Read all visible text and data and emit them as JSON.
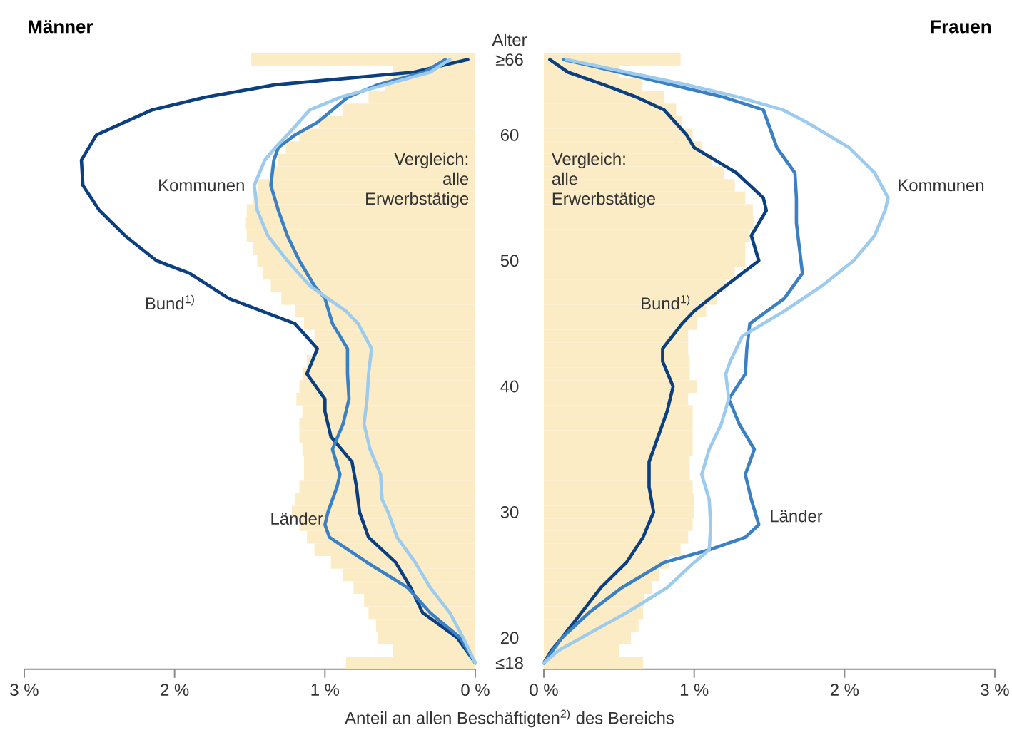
{
  "chart_data": [
    {
      "type": "line",
      "orientation": "horizontal",
      "title": "Männer",
      "ylabel": "Alter",
      "xlabel": "Anteil an allen Beschäftigten$^{2)}$ des Bereichs",
      "xlim": [
        3,
        0
      ],
      "xticks": [
        {
          "value": 3,
          "label": "3 %"
        },
        {
          "value": 2,
          "label": "2 %"
        },
        {
          "value": 1,
          "label": "1 %"
        },
        {
          "value": 0,
          "label": "0 %"
        }
      ],
      "ylim": [
        17.5,
        66.5
      ],
      "yticks": [
        {
          "value": 18,
          "label": "≤18"
        },
        20,
        30,
        40,
        50,
        60,
        {
          "value": 66,
          "label": "≥66"
        }
      ],
      "series": [
        {
          "name": "Vergleich: alle Erwerbstätige",
          "type": "bar",
          "color": "#fcecc6",
          "x": [
            18,
            19,
            20,
            21,
            22,
            23,
            24,
            25,
            26,
            27,
            28,
            29,
            30,
            31,
            32,
            33,
            34,
            35,
            36,
            37,
            38,
            39,
            40,
            41,
            42,
            43,
            44,
            45,
            46,
            47,
            48,
            49,
            50,
            51,
            52,
            53,
            54,
            55,
            56,
            57,
            58,
            59,
            60,
            61,
            62,
            63,
            64,
            65,
            66
          ],
          "values": [
            0.86,
            0.55,
            0.65,
            0.66,
            0.71,
            0.74,
            0.81,
            0.88,
            0.96,
            1.07,
            1.12,
            1.17,
            1.22,
            1.2,
            1.17,
            1.14,
            1.14,
            1.15,
            1.17,
            1.17,
            1.15,
            1.19,
            1.17,
            1.15,
            1.12,
            1.07,
            1.07,
            1.14,
            1.2,
            1.29,
            1.36,
            1.41,
            1.45,
            1.48,
            1.52,
            1.53,
            1.52,
            1.48,
            1.45,
            1.36,
            1.31,
            1.26,
            1.17,
            1.04,
            0.88,
            0.71,
            0.6,
            0.55,
            1.49
          ]
        },
        {
          "name": "Bund$^{1)}$",
          "color": "#0b3f80",
          "x": [
            18,
            20,
            22,
            24,
            26,
            28,
            30,
            32,
            34,
            36,
            38,
            39,
            41,
            43,
            45,
            47,
            49,
            50,
            52,
            54,
            56,
            58,
            60,
            62,
            63,
            64,
            65,
            66
          ],
          "values": [
            0,
            0.12,
            0.35,
            0.43,
            0.53,
            0.71,
            0.77,
            0.79,
            0.82,
            0.96,
            1.0,
            1.0,
            1.12,
            1.05,
            1.2,
            1.64,
            1.9,
            2.12,
            2.33,
            2.5,
            2.61,
            2.62,
            2.52,
            2.15,
            1.8,
            1.33,
            0.41,
            0.05
          ]
        },
        {
          "name": "Länder",
          "color": "#3b80c3",
          "x": [
            18,
            20,
            22,
            24,
            26,
            28,
            29,
            30,
            32,
            33,
            35,
            37,
            39,
            41,
            43,
            45,
            47,
            48,
            50,
            52,
            54,
            56,
            58,
            59,
            60,
            61,
            62,
            63,
            64,
            65,
            66
          ],
          "values": [
            0,
            0.1,
            0.3,
            0.45,
            0.72,
            0.97,
            1.0,
            0.98,
            0.92,
            0.9,
            0.95,
            0.88,
            0.84,
            0.85,
            0.85,
            0.95,
            1.0,
            1.07,
            1.17,
            1.25,
            1.31,
            1.36,
            1.34,
            1.31,
            1.2,
            1.05,
            0.95,
            0.85,
            0.65,
            0.34,
            0.2
          ]
        },
        {
          "name": "Kommunen",
          "color": "#9dcbee",
          "x": [
            18,
            20,
            22,
            24,
            26,
            28,
            30,
            31,
            33,
            35,
            37,
            39,
            41,
            43,
            45,
            46,
            48,
            50,
            52,
            54,
            56,
            58,
            59,
            60,
            62,
            63,
            64,
            65,
            66
          ],
          "values": [
            0,
            0.08,
            0.17,
            0.3,
            0.4,
            0.52,
            0.58,
            0.62,
            0.63,
            0.7,
            0.74,
            0.72,
            0.71,
            0.69,
            0.78,
            0.86,
            1.1,
            1.25,
            1.38,
            1.45,
            1.47,
            1.4,
            1.33,
            1.25,
            1.1,
            0.9,
            0.6,
            0.3,
            0.17
          ]
        }
      ]
    },
    {
      "type": "line",
      "orientation": "horizontal",
      "title": "Frauen",
      "xlim": [
        0,
        3
      ],
      "xticks": [
        {
          "value": 0,
          "label": "0 %"
        },
        {
          "value": 1,
          "label": "1 %"
        },
        {
          "value": 2,
          "label": "2 %"
        },
        {
          "value": 3,
          "label": "3 %"
        }
      ],
      "ylim": [
        17.5,
        66.5
      ],
      "tick_labels": "x",
      "series": [
        {
          "name": "Vergleich: alle Erwerbstätige",
          "type": "bar",
          "color": "#fcecc6",
          "x": [
            18,
            19,
            20,
            21,
            22,
            23,
            24,
            25,
            26,
            27,
            28,
            29,
            30,
            31,
            32,
            33,
            34,
            35,
            36,
            37,
            38,
            39,
            40,
            41,
            42,
            43,
            44,
            45,
            46,
            47,
            48,
            49,
            50,
            51,
            52,
            53,
            54,
            55,
            56,
            57,
            58,
            59,
            60,
            61,
            62,
            63,
            64,
            65,
            66
          ],
          "values": [
            0.66,
            0.5,
            0.58,
            0.63,
            0.66,
            0.67,
            0.72,
            0.77,
            0.83,
            0.91,
            0.96,
            0.99,
            1.0,
            1.0,
            0.99,
            0.97,
            0.97,
            0.99,
            0.99,
            0.99,
            0.99,
            0.96,
            1.02,
            0.97,
            0.97,
            0.96,
            0.96,
            1.02,
            1.08,
            1.15,
            1.21,
            1.27,
            1.34,
            1.34,
            1.37,
            1.4,
            1.39,
            1.34,
            1.27,
            1.2,
            1.12,
            1.05,
            0.99,
            0.92,
            0.88,
            0.8,
            0.65,
            0.5,
            0.91
          ]
        },
        {
          "name": "Bund$^{1)}$",
          "color": "#0b3f80",
          "x": [
            18,
            19,
            20,
            22,
            24,
            26,
            28,
            30,
            32,
            34,
            36,
            38,
            40,
            42,
            43,
            45,
            46,
            48,
            50,
            52,
            54,
            55,
            57,
            59,
            60,
            62,
            63,
            64,
            65,
            66
          ],
          "values": [
            0,
            0.05,
            0.12,
            0.25,
            0.38,
            0.55,
            0.66,
            0.73,
            0.7,
            0.7,
            0.76,
            0.82,
            0.86,
            0.79,
            0.79,
            0.92,
            1.0,
            1.21,
            1.43,
            1.38,
            1.48,
            1.46,
            1.28,
            1.0,
            0.95,
            0.8,
            0.62,
            0.4,
            0.16,
            0.04
          ]
        },
        {
          "name": "Länder",
          "color": "#3b80c3",
          "x": [
            18,
            20,
            22,
            24,
            26,
            27,
            28,
            29,
            31,
            33,
            35,
            37,
            39,
            41,
            43,
            45,
            47,
            49,
            51,
            53,
            55,
            57,
            59,
            61,
            62,
            63,
            64,
            65,
            66
          ],
          "values": [
            0,
            0.12,
            0.3,
            0.52,
            0.8,
            1.1,
            1.34,
            1.43,
            1.38,
            1.34,
            1.4,
            1.3,
            1.23,
            1.34,
            1.35,
            1.37,
            1.6,
            1.72,
            1.7,
            1.68,
            1.68,
            1.67,
            1.55,
            1.49,
            1.46,
            1.2,
            0.85,
            0.5,
            0.13
          ]
        },
        {
          "name": "Kommunen",
          "color": "#9dcbee",
          "x": [
            18,
            19,
            20,
            21,
            22,
            24,
            26,
            27,
            29,
            31,
            33,
            35,
            37,
            39,
            41,
            42,
            44,
            46,
            48,
            50,
            52,
            54,
            55,
            57,
            59,
            61,
            62,
            63,
            64,
            65,
            66
          ],
          "values": [
            0,
            0.1,
            0.25,
            0.4,
            0.55,
            0.82,
            1.0,
            1.1,
            1.11,
            1.1,
            1.05,
            1.1,
            1.18,
            1.23,
            1.21,
            1.24,
            1.32,
            1.6,
            1.85,
            2.06,
            2.2,
            2.27,
            2.29,
            2.2,
            2.03,
            1.75,
            1.59,
            1.3,
            0.95,
            0.55,
            0.15
          ]
        }
      ]
    }
  ]
}
